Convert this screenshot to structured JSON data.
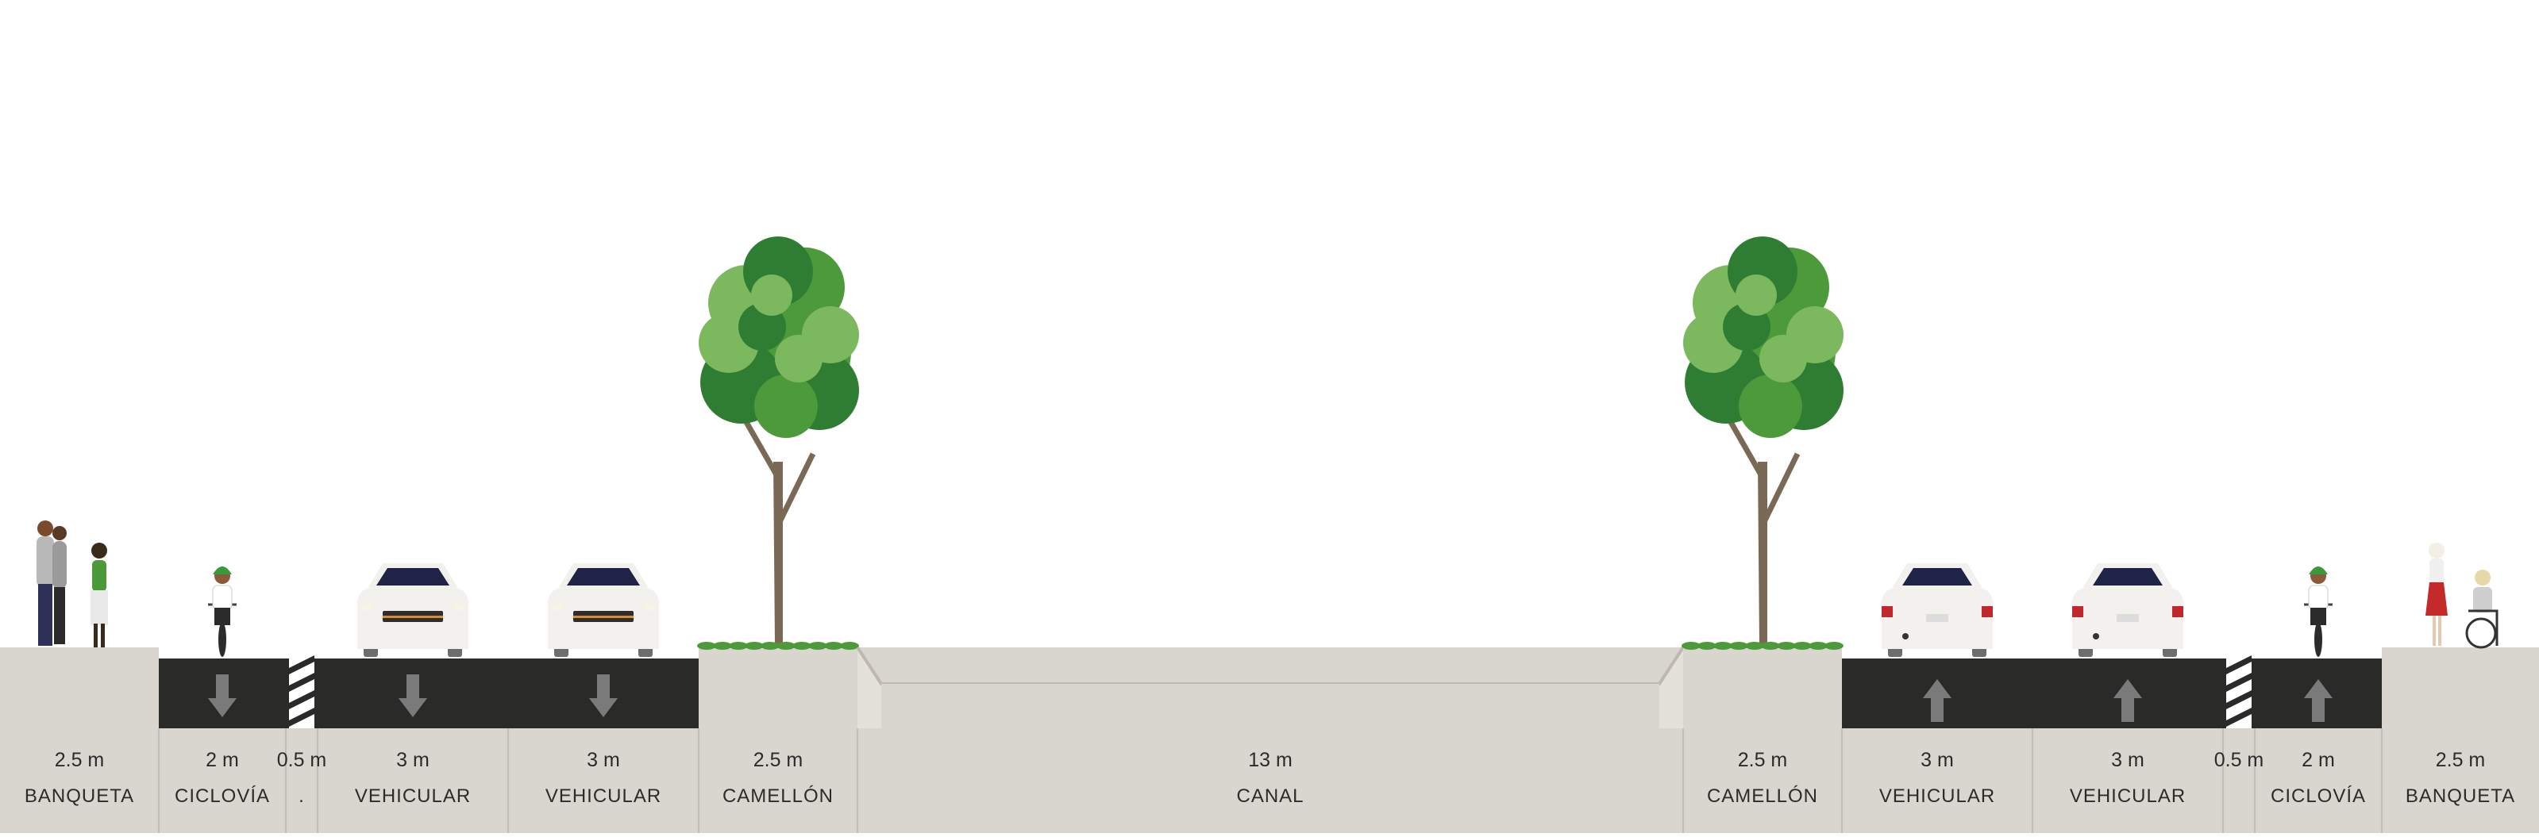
{
  "colors": {
    "sidewalk": "#d9d6d0",
    "asphalt": "#2a2b29",
    "lane_marking": "#7a7a7a",
    "tree_dark": "#2e7d32",
    "tree_mid": "#4c9a3a",
    "tree_light": "#7cb95e",
    "trunk": "#7a6a55",
    "car_body": "#f2f1ee",
    "car_glass": "#1e2347"
  },
  "segments": [
    {
      "width_label": "2.5 m",
      "name": "BANQUETA",
      "type": "sidewalk",
      "people": [
        "couple",
        "woman-walking"
      ]
    },
    {
      "width_label": "2 m",
      "name": "CICLOVÍA",
      "type": "bike-lane",
      "direction": "down"
    },
    {
      "width_label": "0.5 m",
      "name": ".",
      "type": "buffer"
    },
    {
      "width_label": "3 m",
      "name": "VEHICULAR",
      "type": "drive-lane",
      "direction": "down"
    },
    {
      "width_label": "3 m",
      "name": "VEHICULAR",
      "type": "drive-lane",
      "direction": "down"
    },
    {
      "width_label": "2.5 m",
      "name": "CAMELLÓN",
      "type": "median-tree"
    },
    {
      "width_label": "13 m",
      "name": "CANAL",
      "type": "canal"
    },
    {
      "width_label": "2.5 m",
      "name": "CAMELLÓN",
      "type": "median-tree"
    },
    {
      "width_label": "3 m",
      "name": "VEHICULAR",
      "type": "drive-lane",
      "direction": "up"
    },
    {
      "width_label": "3 m",
      "name": "VEHICULAR",
      "type": "drive-lane",
      "direction": "up"
    },
    {
      "width_label": "0.5 m",
      "name": "",
      "type": "buffer"
    },
    {
      "width_label": "2 m",
      "name": "CICLOVÍA",
      "type": "bike-lane",
      "direction": "up"
    },
    {
      "width_label": "2.5 m",
      "name": "BANQUETA",
      "type": "sidewalk",
      "people": [
        "woman-red-dress",
        "wheelchair-user"
      ]
    }
  ]
}
